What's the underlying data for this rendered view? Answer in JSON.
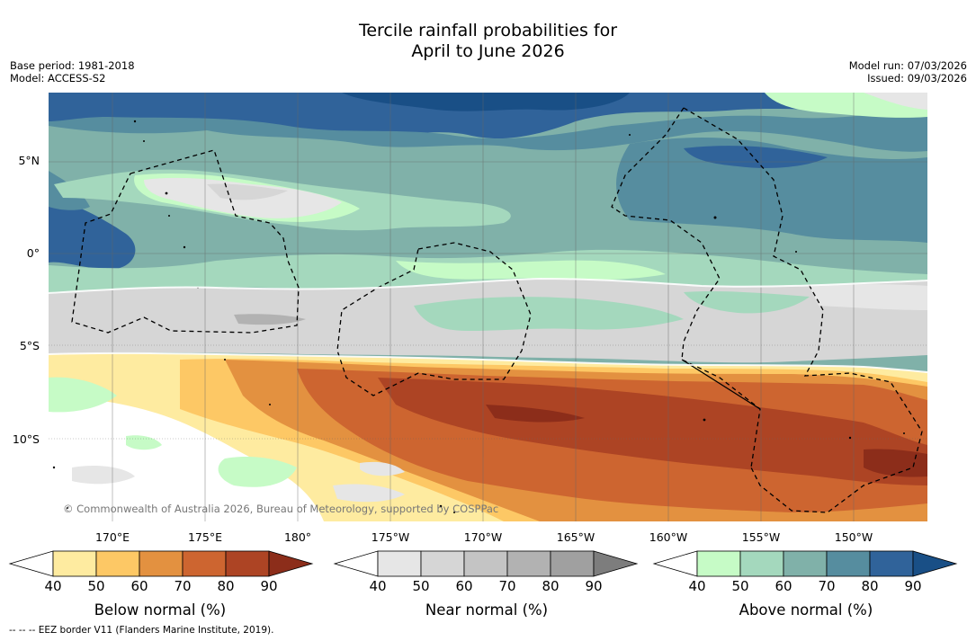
{
  "header": {
    "title_line1": "Tercile rainfall probabilities for",
    "title_line2": "April to June 2026",
    "base_period": "Base period: 1981-2018",
    "model": "Model: ACCESS-S2",
    "model_run": "Model run: 07/03/2026",
    "issued": "Issued: 09/03/2026"
  },
  "map": {
    "lat_labels": [
      "5°N",
      "0°",
      "5°S",
      "10°S"
    ],
    "lon_labels": [
      "170°E",
      "175°E",
      "180°",
      "175°W",
      "170°W",
      "165°W",
      "160°W",
      "155°W",
      "150°W"
    ],
    "credit": "© Commonwealth of Australia 2026, Bureau of Meteorology, supported by COSPPac",
    "eez_border_style": "dashed"
  },
  "legends": {
    "below": {
      "title": "Below normal (%)",
      "ticks": [
        "40",
        "50",
        "60",
        "70",
        "80",
        "90"
      ],
      "colors": [
        "#ffffff",
        "#feeba0",
        "#fdc865",
        "#e39140",
        "#cd6530",
        "#ad4424",
        "#8c2d1a"
      ]
    },
    "near": {
      "title": "Near normal (%)",
      "ticks": [
        "40",
        "50",
        "60",
        "70",
        "80",
        "90"
      ],
      "colors": [
        "#ffffff",
        "#e6e6e6",
        "#d6d6d6",
        "#c4c4c4",
        "#b2b2b2",
        "#a0a0a0",
        "#7d7d7d"
      ]
    },
    "above": {
      "title": "Above normal (%)",
      "ticks": [
        "40",
        "50",
        "60",
        "70",
        "80",
        "90"
      ],
      "colors": [
        "#ffffff",
        "#c6fbc6",
        "#a4d8bd",
        "#80b1a9",
        "#568d9f",
        "#30639a",
        "#194f86"
      ]
    }
  },
  "footnote": "--  --  -- EEZ border V11 (Flanders Marine Institute, 2019)."
}
